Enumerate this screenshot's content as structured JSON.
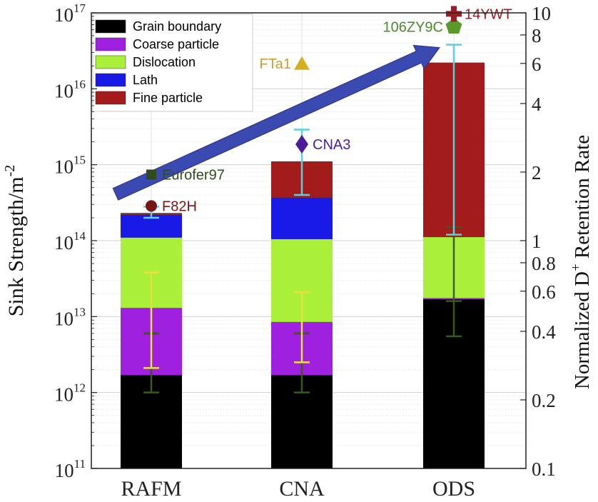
{
  "chart_data": {
    "type": "bar",
    "stacked": true,
    "y_scale": "log",
    "categories": [
      "RAFM",
      "CNA",
      "ODS"
    ],
    "ylabel": "Sink Strength/m",
    "ylabel_sup": "-2",
    "y2label_pre": "Normalized D",
    "y2label_sup": "+",
    "y2label_post": " Retention Rate",
    "ylim": [
      100000000000.0,
      1e+17
    ],
    "y_ticks": [
      {
        "v": 100000000000.0,
        "base": "10",
        "exp": "11"
      },
      {
        "v": 1000000000000.0,
        "base": "10",
        "exp": "12"
      },
      {
        "v": 10000000000000.0,
        "base": "10",
        "exp": "13"
      },
      {
        "v": 100000000000000.0,
        "base": "10",
        "exp": "14"
      },
      {
        "v": 1000000000000000.0,
        "base": "10",
        "exp": "15"
      },
      {
        "v": 1e+16,
        "base": "10",
        "exp": "16"
      },
      {
        "v": 1e+17,
        "base": "10",
        "exp": "17"
      }
    ],
    "y2_scale": "log",
    "y2lim": [
      0.1,
      10
    ],
    "y2_ticks": [
      {
        "v": 0.1,
        "label": "0.1"
      },
      {
        "v": 0.2,
        "label": "0.2"
      },
      {
        "v": 0.4,
        "label": "0.4"
      },
      {
        "v": 0.6,
        "label": "0.6"
      },
      {
        "v": 0.8,
        "label": "0.8"
      },
      {
        "v": 1,
        "label": "1"
      },
      {
        "v": 2,
        "label": "2"
      },
      {
        "v": 4,
        "label": "4"
      },
      {
        "v": 6,
        "label": "6"
      },
      {
        "v": 8,
        "label": "8"
      },
      {
        "v": 10,
        "label": "10"
      }
    ],
    "grid": true,
    "legend_position": "top-left",
    "series": [
      {
        "name": "Grain boundary",
        "color": "#000000",
        "cumulative_top": [
          1700000000000.0,
          1700000000000.0,
          17000000000000.0
        ]
      },
      {
        "name": "Coarse particle",
        "color": "#a020e0",
        "cumulative_top": [
          13000000000000.0,
          8500000000000.0,
          17500000000000.0
        ]
      },
      {
        "name": "Dislocation",
        "color": "#aaf03a",
        "cumulative_top": [
          110000000000000.0,
          105000000000000.0,
          112000000000000.0
        ]
      },
      {
        "name": "Lath",
        "color": "#1a1ae6",
        "cumulative_top": [
          220000000000000.0,
          370000000000000.0,
          112000000000000.0
        ]
      },
      {
        "name": "Fine particle",
        "color": "#a31b1b",
        "cumulative_top": [
          230000000000000.0,
          1100000000000000.0,
          2.2e+16
        ]
      }
    ],
    "error_bars": [
      {
        "color": "#3a5a1a",
        "values": [
          {
            "cat": 0,
            "low": 1000000000000.0,
            "mid": 6000000000000.0,
            "high": 6000000000000.0
          },
          {
            "cat": 1,
            "low": 1000000000000.0,
            "mid": 6000000000000.0,
            "high": 6000000000000.0
          },
          {
            "cat": 2,
            "low": 5500000000000.0,
            "mid": 16000000000000.0,
            "high": 150000000000000.0
          }
        ]
      },
      {
        "color": "#e8e040",
        "values": [
          {
            "cat": 0,
            "low": 2100000000000.0,
            "high": 38000000000000.0
          },
          {
            "cat": 1,
            "low": 2500000000000.0,
            "high": 21000000000000.0
          }
        ]
      },
      {
        "color": "#5ad0e0",
        "values": [
          {
            "cat": 0,
            "low": 200000000000000.0,
            "high": 280000000000000.0
          },
          {
            "cat": 1,
            "low": 400000000000000.0,
            "high": 2900000000000000.0
          },
          {
            "cat": 2,
            "low": 120000000000000.0,
            "high": 3.8e+16
          }
        ]
      }
    ],
    "markers": [
      {
        "label": "Eurofer97",
        "cat": 0,
        "y2": 1.95,
        "shape": "square",
        "color": "#2e4a1e",
        "text_color": "#2e4a1e",
        "text_side": "right"
      },
      {
        "label": "F82H",
        "cat": 0,
        "y2": 1.42,
        "shape": "circle",
        "color": "#7a1515",
        "text_color": "#7a1515",
        "text_side": "right"
      },
      {
        "label": "FTa1",
        "cat": 1,
        "y2": 6.0,
        "shape": "triangle",
        "color": "#d4b020",
        "text_color": "#c8a030",
        "text_side": "left"
      },
      {
        "label": "CNA3",
        "cat": 1,
        "y2": 2.65,
        "shape": "diamond",
        "color": "#4a1e9a",
        "text_color": "#4a1e9a",
        "text_side": "right"
      },
      {
        "label": "106ZY9C",
        "cat": 2,
        "y2": 8.7,
        "shape": "pentagon",
        "color": "#5a9a2a",
        "text_color": "#4a8a2a",
        "text_side": "left"
      },
      {
        "label": "14YWT",
        "cat": 2,
        "y2": 9.9,
        "shape": "plus",
        "color": "#9a1e2a",
        "text_color": "#9a1e2a",
        "text_side": "right"
      }
    ],
    "arrow": {
      "from": {
        "cat": 0,
        "y": 750000000000000.0
      },
      "to": {
        "cat": 2,
        "y": 3.8e+16
      },
      "color": "#3a4ab0"
    }
  }
}
